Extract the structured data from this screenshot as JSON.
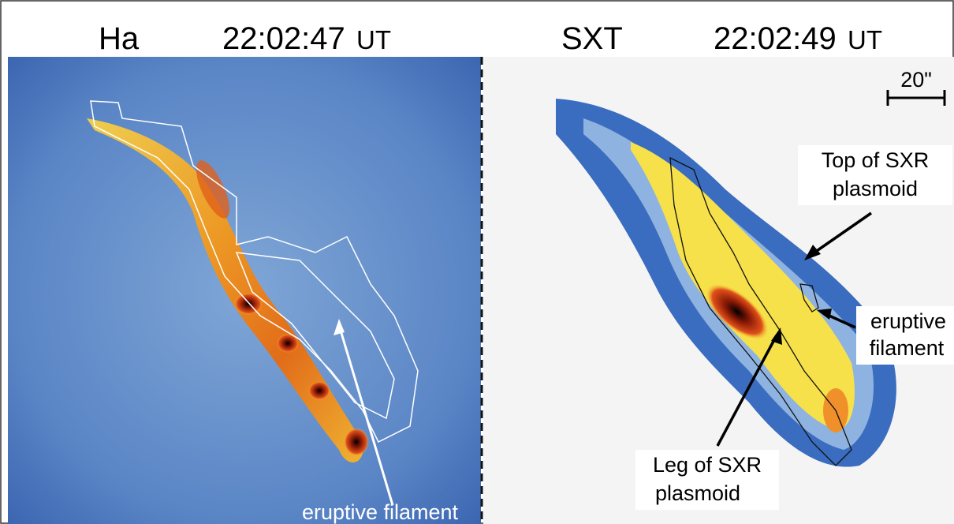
{
  "panels": [
    {
      "instrument": "Ha",
      "time": "22:02:47",
      "time_unit": "UT",
      "annotations": [
        {
          "lines": [
            "eruptive filament"
          ]
        }
      ]
    },
    {
      "instrument": "SXT",
      "time": "22:02:49",
      "time_unit": "UT",
      "scale_bar": "20\"",
      "annotations": [
        {
          "lines": [
            "Top of SXR",
            "plasmoid"
          ]
        },
        {
          "lines": [
            "eruptive",
            "filament"
          ]
        },
        {
          "lines": [
            "Leg of SXR",
            "plasmoid"
          ]
        }
      ]
    }
  ]
}
